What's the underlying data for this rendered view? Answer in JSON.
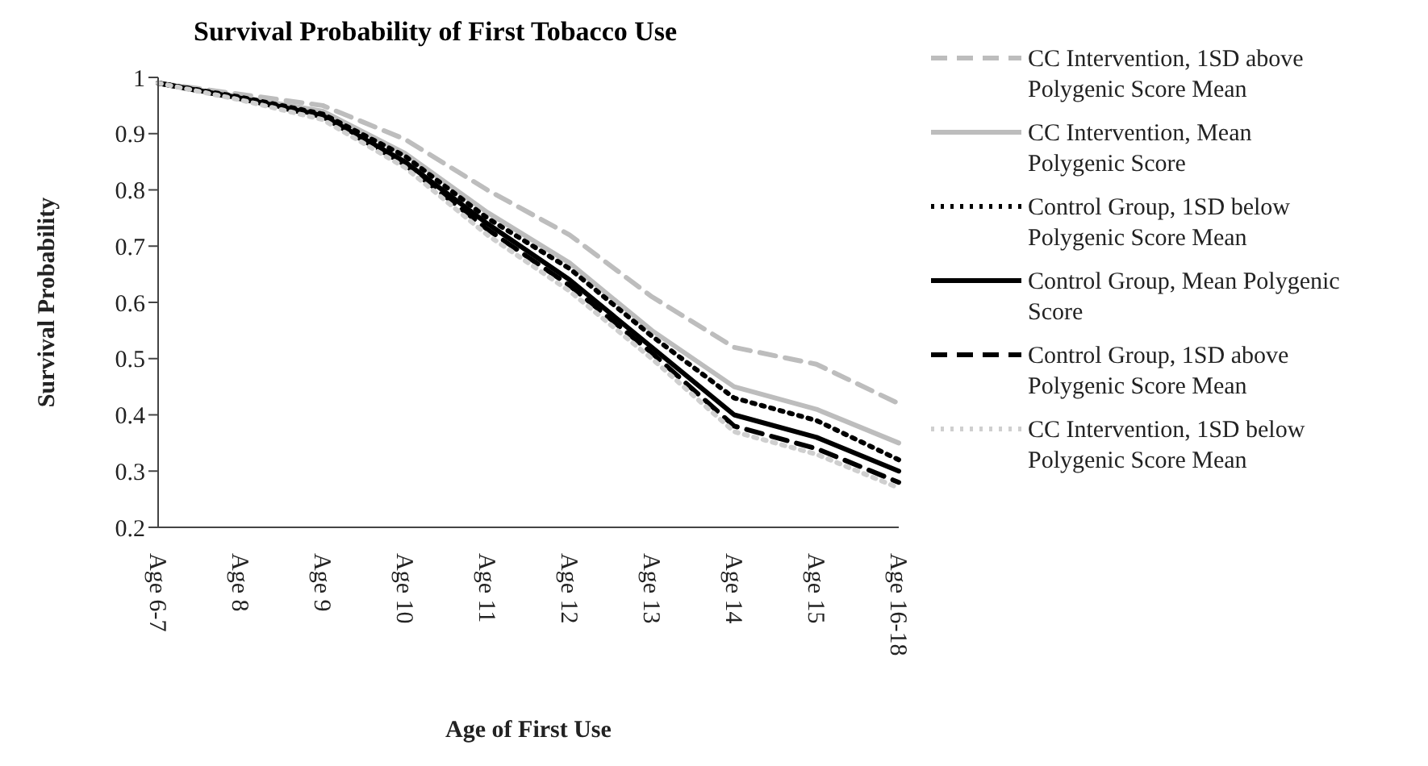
{
  "chart_data": {
    "type": "line",
    "title": "Survival Probability of First Tobacco Use",
    "xlabel": "Age of First Use",
    "ylabel": "Survival Probability",
    "categories": [
      "Age 6-7",
      "Age 8",
      "Age 9",
      "Age 10",
      "Age 11",
      "Age 12",
      "Age 13",
      "Age 14",
      "Age 15",
      "Age 16-18"
    ],
    "series": [
      {
        "name": "CC Intervention, 1SD above Polygenic Score Mean",
        "color": "#bdbdbd",
        "line_style": "dashed",
        "values": [
          0.99,
          0.97,
          0.95,
          0.89,
          0.8,
          0.72,
          0.61,
          0.52,
          0.49,
          0.42
        ]
      },
      {
        "name": "CC Intervention, Mean Polygenic Score",
        "color": "#bdbdbd",
        "line_style": "solid",
        "values": [
          0.99,
          0.965,
          0.94,
          0.865,
          0.76,
          0.67,
          0.55,
          0.45,
          0.41,
          0.35
        ]
      },
      {
        "name": "Control Group, 1SD below Polygenic Score Mean",
        "color": "#000000",
        "line_style": "dotted",
        "values": [
          0.99,
          0.965,
          0.935,
          0.86,
          0.75,
          0.66,
          0.54,
          0.43,
          0.39,
          0.32
        ]
      },
      {
        "name": "Control Group, Mean Polygenic Score",
        "color": "#000000",
        "line_style": "solid",
        "values": [
          0.99,
          0.963,
          0.932,
          0.85,
          0.74,
          0.64,
          0.52,
          0.4,
          0.36,
          0.3
        ]
      },
      {
        "name": "Control Group, 1SD above Polygenic Score Mean",
        "color": "#000000",
        "line_style": "dashed",
        "values": [
          0.99,
          0.962,
          0.93,
          0.845,
          0.73,
          0.63,
          0.51,
          0.38,
          0.34,
          0.28
        ]
      },
      {
        "name": "CC Intervention, 1SD below Polygenic Score Mean",
        "color": "#cfcfcf",
        "line_style": "dotted",
        "values": [
          0.99,
          0.96,
          0.925,
          0.84,
          0.72,
          0.62,
          0.5,
          0.37,
          0.33,
          0.27
        ]
      }
    ],
    "ylim": [
      0.2,
      1
    ],
    "yticks": [
      0.2,
      0.3,
      0.4,
      0.5,
      0.6,
      0.7,
      0.8,
      0.9,
      1
    ],
    "grid": false,
    "legend": "right",
    "marker": "none"
  }
}
